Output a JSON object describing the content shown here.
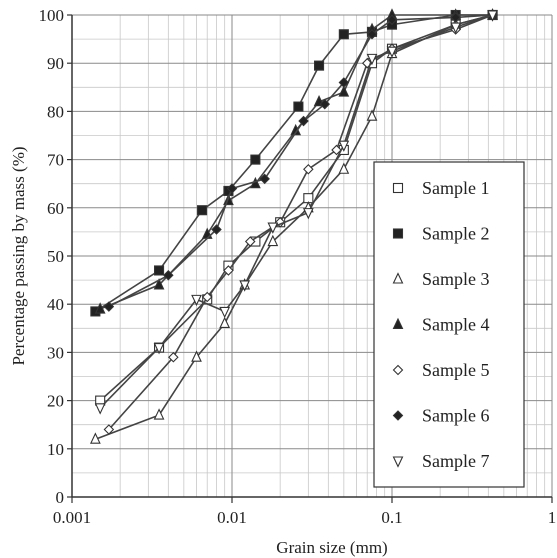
{
  "chart_data": {
    "type": "line",
    "xscale": "log",
    "grid": true,
    "legend_position": "right",
    "xlabel": "Grain size (mm)",
    "ylabel": "Percentage passing by mass (%)",
    "xlim": [
      0.001,
      1
    ],
    "ylim": [
      0,
      100
    ],
    "x_tick_labels": [
      "0.001",
      "0.01",
      "0.1",
      "1"
    ],
    "x_tick_values": [
      0.001,
      0.01,
      0.1,
      1
    ],
    "y_tick_values": [
      0,
      10,
      20,
      30,
      40,
      50,
      60,
      70,
      80,
      90,
      100
    ],
    "y_tick_labels": [
      "0",
      "10",
      "20",
      "30",
      "40",
      "50",
      "60",
      "70",
      "80",
      "90",
      "100"
    ],
    "series": [
      {
        "name": "Sample 1",
        "marker": "open-square",
        "x": [
          0.0015,
          0.0035,
          0.007,
          0.0095,
          0.014,
          0.02,
          0.03,
          0.05,
          0.075,
          0.1,
          0.25,
          0.425
        ],
        "y": [
          20,
          31,
          41,
          48,
          53,
          57,
          62,
          72,
          90,
          93,
          98,
          100
        ]
      },
      {
        "name": "Sample 2",
        "marker": "filled-square",
        "x": [
          0.0014,
          0.0035,
          0.0065,
          0.0095,
          0.014,
          0.026,
          0.035,
          0.05,
          0.075,
          0.1,
          0.25,
          0.425
        ],
        "y": [
          38.5,
          47,
          59.5,
          63.5,
          70,
          81,
          89.5,
          96,
          96.5,
          98,
          100,
          100
        ]
      },
      {
        "name": "Sample 3",
        "marker": "open-triangle-up",
        "x": [
          0.0014,
          0.0035,
          0.006,
          0.009,
          0.012,
          0.018,
          0.03,
          0.05,
          0.075,
          0.1,
          0.25,
          0.425
        ],
        "y": [
          12,
          17,
          29,
          36,
          44,
          53,
          60,
          68,
          79,
          92,
          98,
          100
        ]
      },
      {
        "name": "Sample 4",
        "marker": "filled-triangle-up",
        "x": [
          0.0015,
          0.0035,
          0.007,
          0.0095,
          0.014,
          0.025,
          0.035,
          0.05,
          0.075,
          0.1,
          0.25,
          0.425
        ],
        "y": [
          39,
          44,
          54.5,
          61.5,
          65,
          76,
          82,
          84,
          97,
          100,
          100,
          100
        ]
      },
      {
        "name": "Sample 5",
        "marker": "open-diamond",
        "x": [
          0.0017,
          0.0043,
          0.007,
          0.0095,
          0.013,
          0.02,
          0.03,
          0.045,
          0.07,
          0.1,
          0.25,
          0.425
        ],
        "y": [
          14,
          29,
          41.5,
          47,
          53,
          57,
          68,
          72,
          90,
          93,
          97,
          100
        ]
      },
      {
        "name": "Sample 6",
        "marker": "filled-diamond",
        "x": [
          0.0017,
          0.004,
          0.008,
          0.01,
          0.016,
          0.028,
          0.038,
          0.05,
          0.075,
          0.1,
          0.25,
          0.425
        ],
        "y": [
          39.5,
          46,
          55.5,
          64,
          66,
          78,
          81.5,
          86,
          96,
          99,
          99.5,
          100
        ]
      },
      {
        "name": "Sample 7",
        "marker": "open-triangle-down",
        "x": [
          0.0015,
          0.0035,
          0.006,
          0.009,
          0.012,
          0.018,
          0.03,
          0.05,
          0.075,
          0.1,
          0.25,
          0.425
        ],
        "y": [
          18.5,
          31,
          41,
          38.5,
          44,
          56,
          59,
          73,
          91,
          92.5,
          97.5,
          100
        ]
      }
    ]
  }
}
